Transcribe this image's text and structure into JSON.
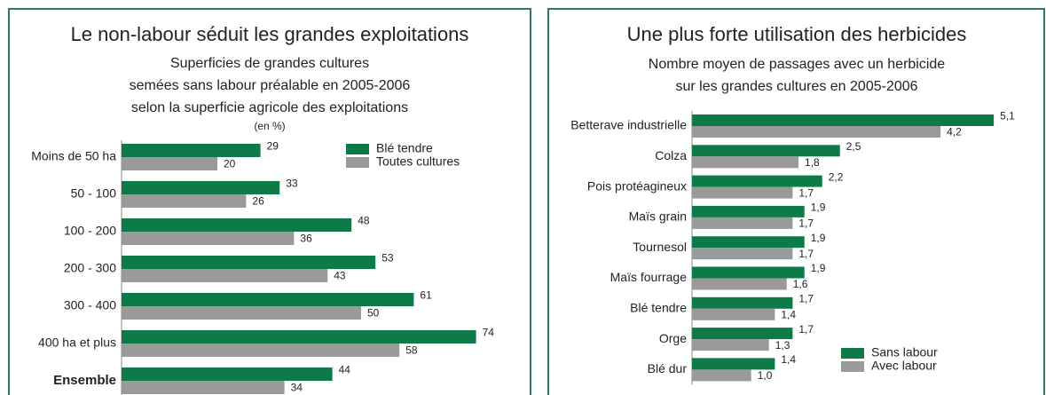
{
  "chart_data": [
    {
      "type": "bar",
      "orientation": "horizontal",
      "title": "Le non-labour séduit les grandes exploitations",
      "subtitle": [
        "Superficies de grandes cultures",
        "semées sans labour préalable en 2005-2006",
        "selon la superficie agricole des exploitations"
      ],
      "unit": "(en %)",
      "categories": [
        "Moins de 50 ha",
        "50 - 100",
        "100 - 200",
        "200 - 300",
        "300 - 400",
        "400 ha et plus",
        "Ensemble"
      ],
      "series": [
        {
          "name": "Blé tendre",
          "color": "#0e7a47",
          "values": [
            29,
            33,
            48,
            53,
            61,
            74,
            44
          ]
        },
        {
          "name": "Toutes cultures",
          "color": "#9a9a9a",
          "values": [
            20,
            26,
            36,
            43,
            50,
            58,
            34
          ]
        }
      ],
      "legend": "upper right"
    },
    {
      "type": "bar",
      "orientation": "horizontal",
      "title": "Une plus forte utilisation des herbicides",
      "subtitle": [
        "Nombre moyen de passages avec un herbicide",
        "sur les grandes cultures en 2005-2006"
      ],
      "categories": [
        "Betterave industrielle",
        "Colza",
        "Pois protéagineux",
        "Maïs grain",
        "Tournesol",
        "Maïs fourrage",
        "Blé tendre",
        "Orge",
        "Blé dur"
      ],
      "series": [
        {
          "name": "Sans labour",
          "color": "#0e7a47",
          "values": [
            5.1,
            2.5,
            2.2,
            1.9,
            1.9,
            1.9,
            1.7,
            1.7,
            1.4
          ],
          "value_labels": [
            "5,1",
            "2,5",
            "2,2",
            "1,9",
            "1,9",
            "1,9",
            "1,7",
            "1,7",
            "1,4"
          ]
        },
        {
          "name": "Avec labour",
          "color": "#9a9a9a",
          "values": [
            4.2,
            1.8,
            1.7,
            1.7,
            1.7,
            1.6,
            1.4,
            1.3,
            1.0
          ],
          "value_labels": [
            "4,2",
            "1,8",
            "1,7",
            "1,7",
            "1,7",
            "1,6",
            "1,4",
            "1,3",
            "1,0"
          ]
        }
      ],
      "legend": "lower right"
    }
  ]
}
